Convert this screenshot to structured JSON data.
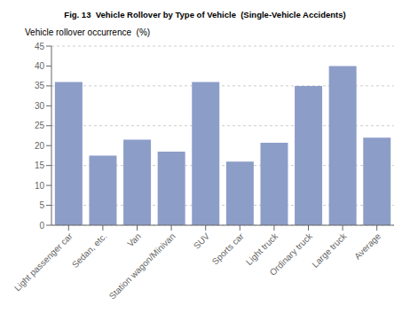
{
  "chart_data": {
    "type": "bar",
    "title": "Fig. 13  Vehicle Rollover by Type of Vehicle  (Single-Vehicle Accidents)",
    "ylabel": "Vehicle rollover occurrence  (%)",
    "categories": [
      "Light passenger car",
      "Sedan, etc.",
      "Van",
      "Station wagon/Minivan",
      "SUV",
      "Sports car",
      "Light truck",
      "Ordinary truck",
      "Large truck",
      "Average"
    ],
    "values": [
      36.0,
      17.5,
      21.5,
      18.5,
      36.0,
      16.0,
      20.7,
      35.0,
      40.0,
      22.0
    ],
    "color": "#8c9dc8",
    "ylim": [
      0,
      45
    ],
    "yticks": [
      0,
      5,
      10,
      15,
      20,
      25,
      30,
      35,
      40,
      45
    ],
    "grid": true
  }
}
